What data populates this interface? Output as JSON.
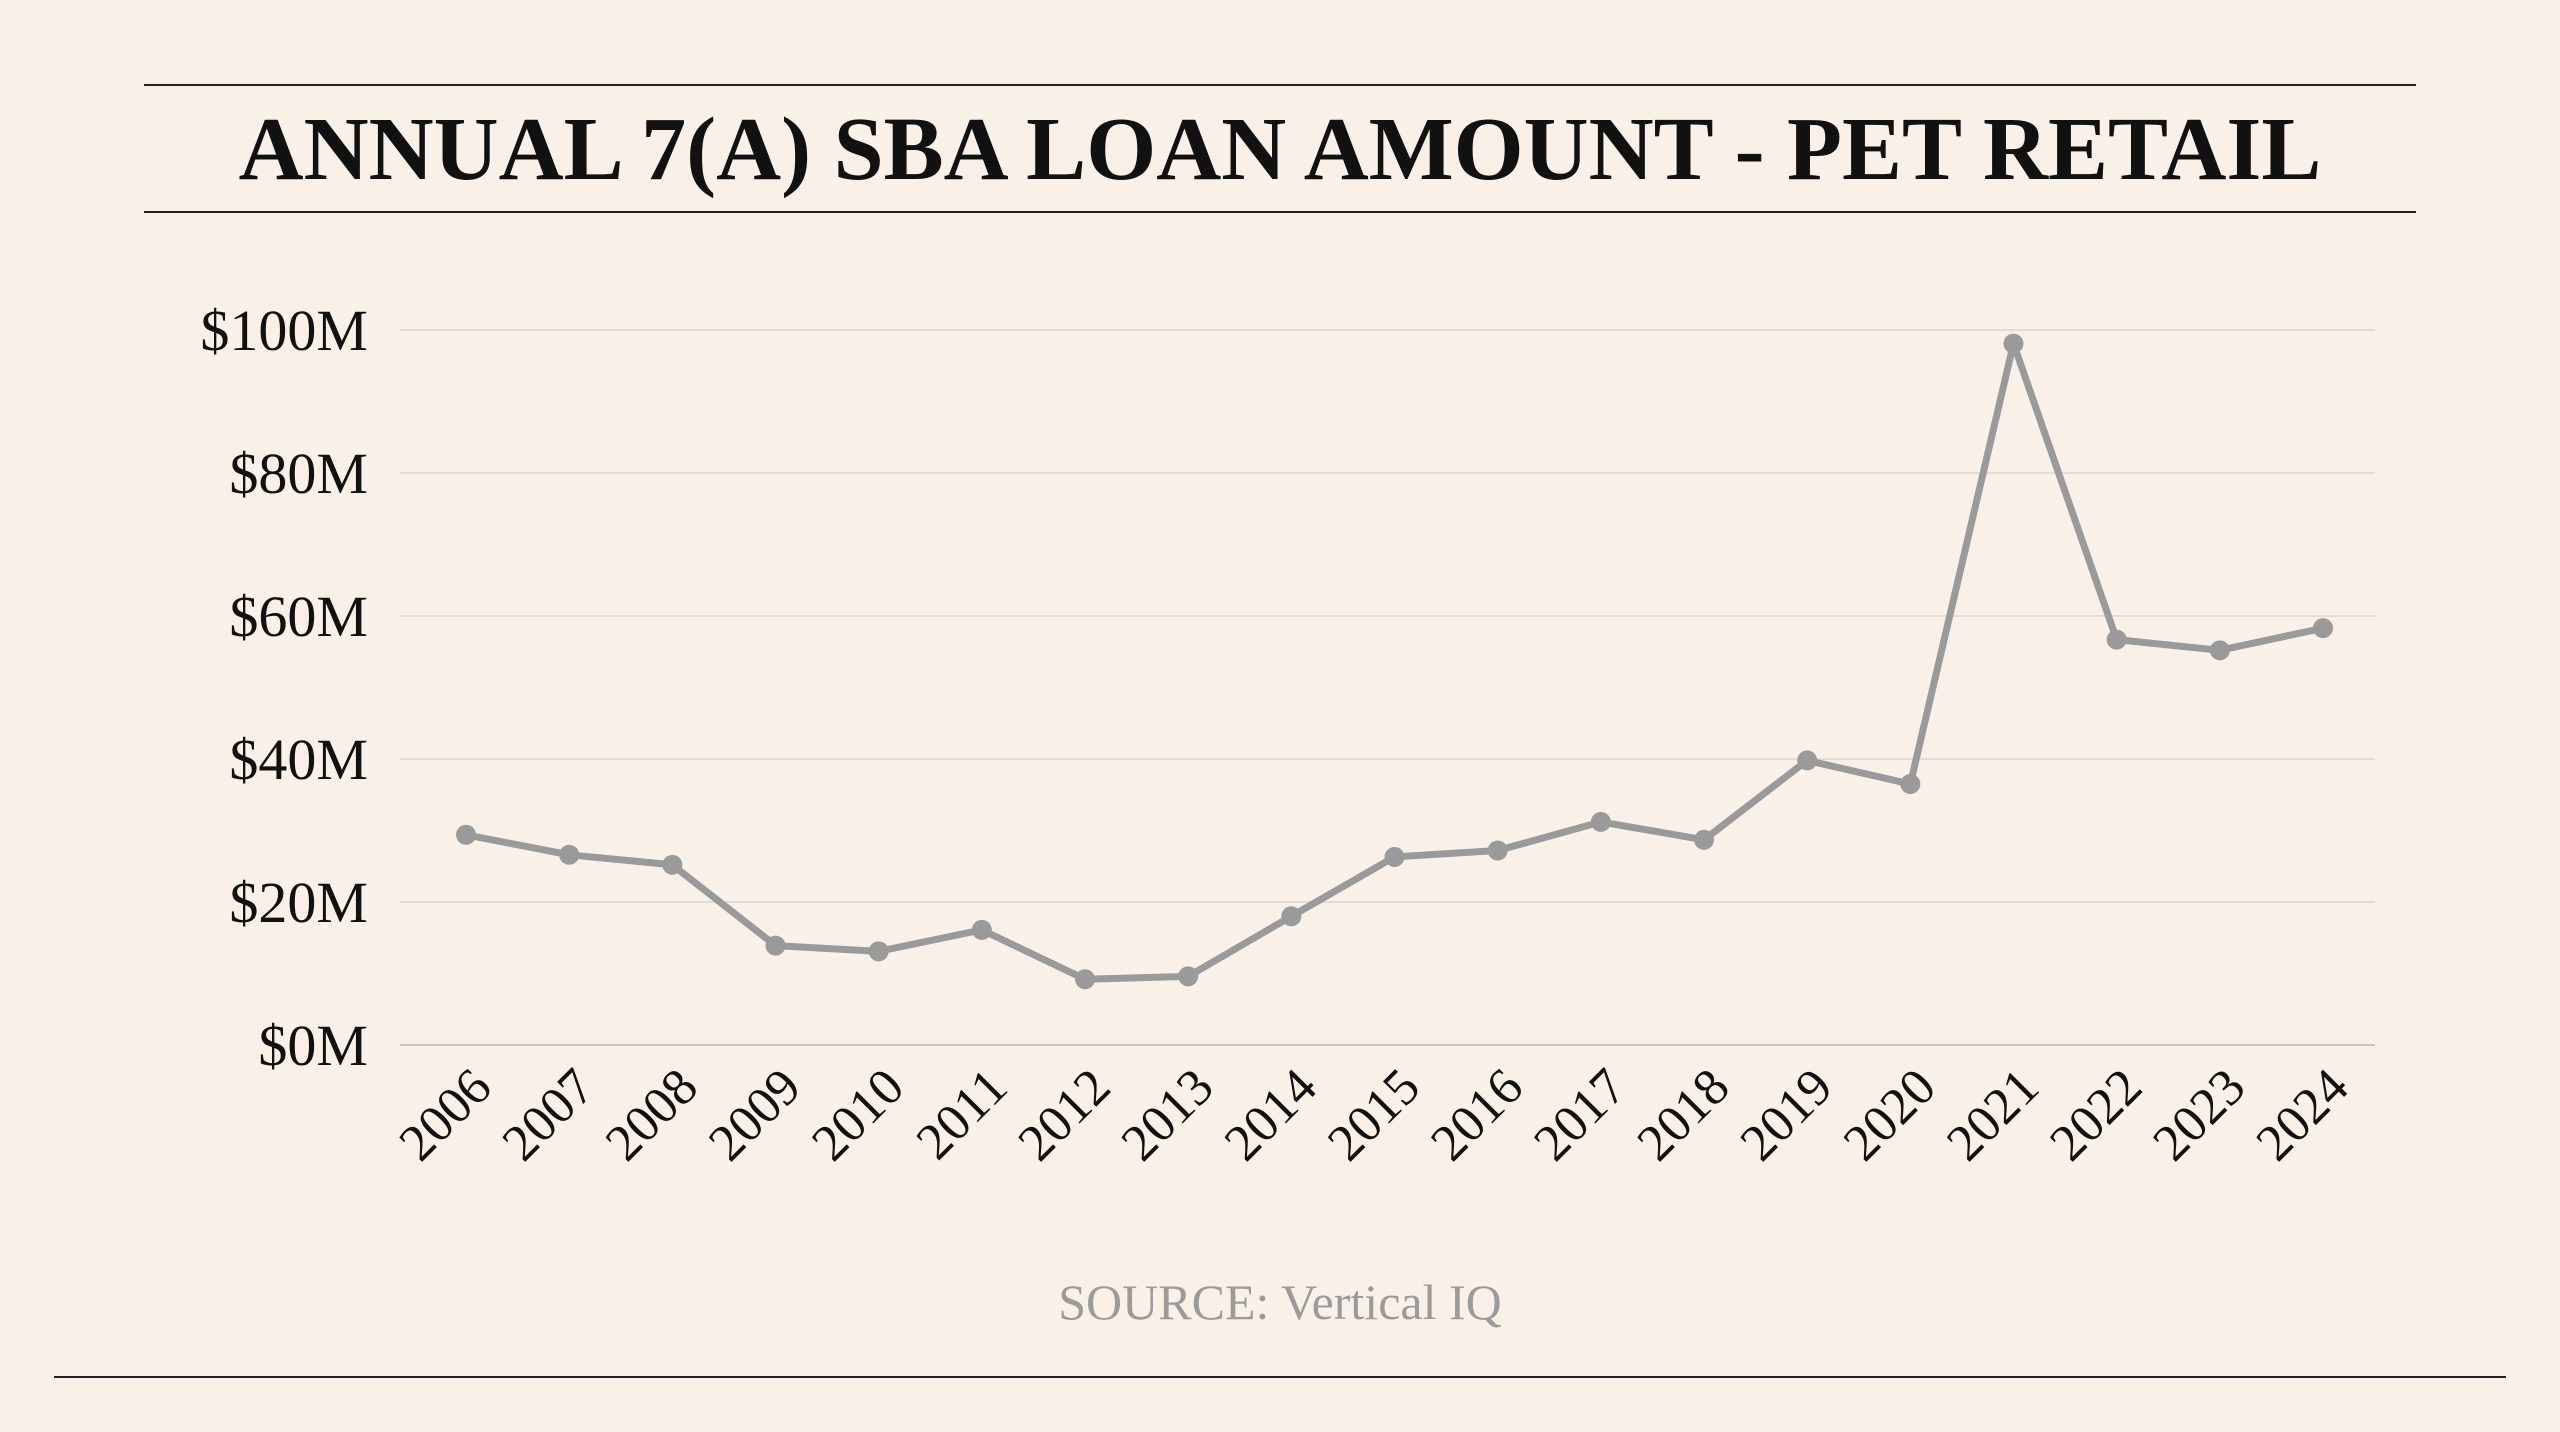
{
  "title": "ANNUAL 7(A) SBA LOAN AMOUNT - PET RETAIL",
  "source": "SOURCE: Vertical IQ",
  "colors": {
    "background": "#f9f1e7",
    "line": "#9a9a9a",
    "grid": "#e3dcd2",
    "axis": "#c8c2ba",
    "source_text": "#9b9b9b"
  },
  "chart_data": {
    "type": "line",
    "title": "ANNUAL 7(A) SBA LOAN AMOUNT - PET RETAIL",
    "xlabel": "",
    "ylabel": "",
    "ylim": [
      0,
      100
    ],
    "y_unit": "$M",
    "yticks": [
      0,
      20,
      40,
      60,
      80,
      100
    ],
    "ytick_labels": [
      "$0M",
      "$20M",
      "$40M",
      "$60M",
      "$80M",
      "$100M"
    ],
    "grid": true,
    "legend": "none",
    "categories": [
      "2006",
      "2007",
      "2008",
      "2009",
      "2010",
      "2011",
      "2012",
      "2013",
      "2014",
      "2015",
      "2016",
      "2017",
      "2018",
      "2019",
      "2020",
      "2021",
      "2022",
      "2023",
      "2024"
    ],
    "series": [
      {
        "values": [
          29.4,
          26.6,
          25.2,
          13.9,
          13.1,
          16.1,
          9.2,
          9.6,
          18.0,
          26.3,
          27.2,
          31.2,
          28.7,
          39.8,
          36.5,
          98.1,
          56.7,
          55.2,
          58.3
        ]
      }
    ]
  }
}
